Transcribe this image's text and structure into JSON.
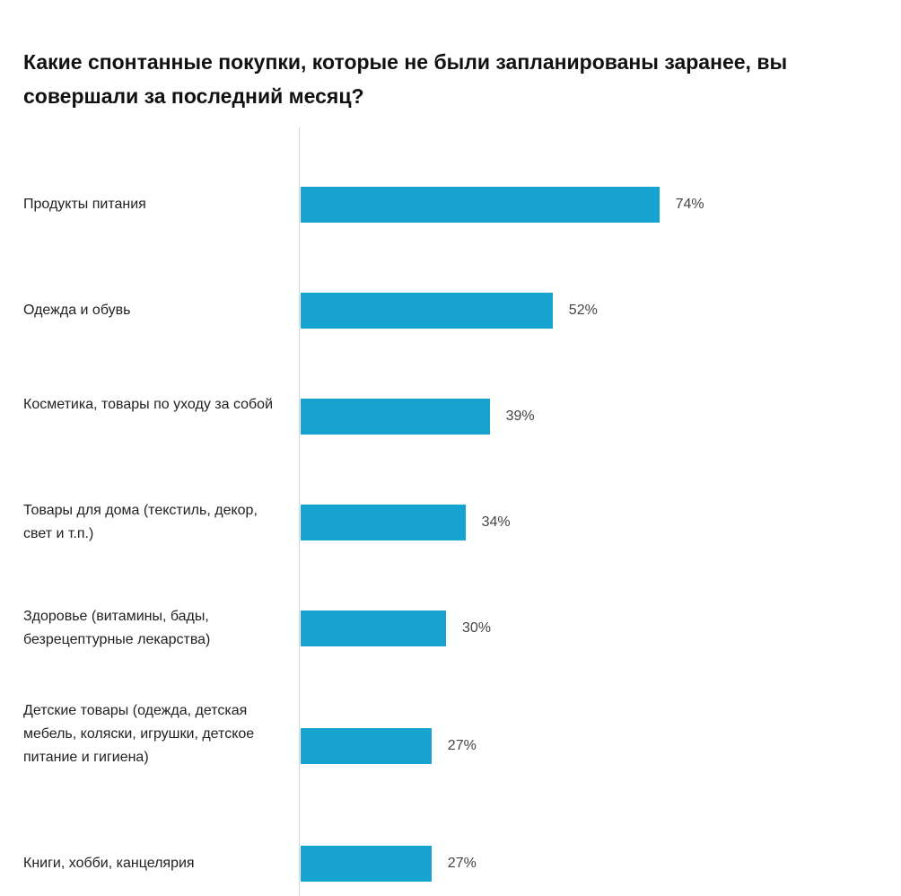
{
  "title": "Какие спонтанные покупки, которые не были запланированы заранее, вы совершали за последний месяц?",
  "colors": {
    "bar": "#16a3d0",
    "axis": "#d6d6d6"
  },
  "chart_data": {
    "type": "bar",
    "orientation": "horizontal",
    "title": "Какие спонтанные покупки, которые не были запланированы заранее, вы совершали за последний месяц?",
    "categories": [
      "Продукты питания",
      "Одежда и обувь",
      "Косметика, товары по уходу за собой",
      "Товары для дома (текстиль, декор, свет и т.п.)",
      "Здоровье (витамины, бады, безрецептурные лекарства)",
      "Детские товары (одежда, детская мебель, коляски, игрушки, детское питание и гигиена)",
      "Книги, хобби, канцелярия"
    ],
    "values": [
      74,
      52,
      39,
      34,
      30,
      27,
      27
    ],
    "value_labels": [
      "74%",
      "52%",
      "39%",
      "34%",
      "30%",
      "27%",
      "27%"
    ],
    "unit": "%",
    "xlim": [
      0,
      100
    ],
    "grid": false,
    "legend": "none"
  }
}
